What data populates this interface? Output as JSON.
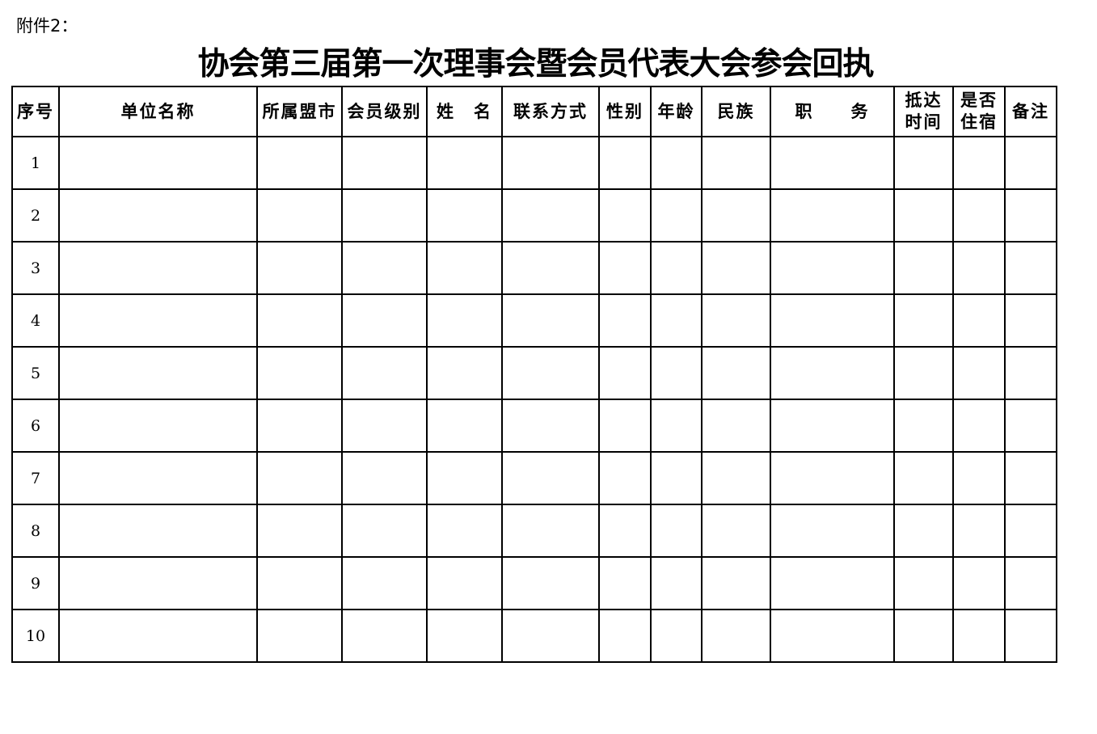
{
  "attachment_label": "附件2：",
  "title": "协会第三届第一次理事会暨会员代表大会参会回执",
  "table": {
    "headers": [
      "序号",
      "单位名称",
      "所属盟市",
      "会员级别",
      "姓　名",
      "联系方式",
      "性别",
      "年龄",
      "民族",
      "职　　务",
      "抵达时间",
      "是否住宿",
      "备注"
    ],
    "header_lines": {
      "10": [
        "抵达",
        "时间"
      ],
      "11": [
        "是否",
        "住宿"
      ]
    },
    "row_numbers": [
      "1",
      "2",
      "3",
      "4",
      "5",
      "6",
      "7",
      "8",
      "9",
      "10"
    ]
  }
}
